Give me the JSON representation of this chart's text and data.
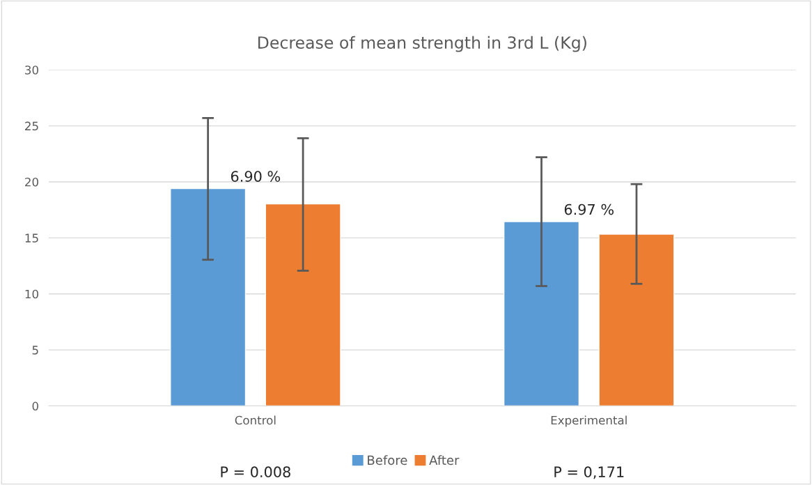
{
  "chart_data": {
    "type": "bar",
    "title": "Decrease of mean strength in 3rd L (Kg)",
    "categories": [
      "Control",
      "Experimental"
    ],
    "series": [
      {
        "name": "Before",
        "color": "#5b9bd5",
        "values": [
          19.4,
          16.45
        ],
        "errors": [
          [
            13.05,
            25.7
          ],
          [
            10.7,
            22.2
          ]
        ]
      },
      {
        "name": "After",
        "color": "#ed7d31",
        "values": [
          18.03,
          15.33
        ],
        "errors": [
          [
            12.07,
            23.9
          ],
          [
            10.9,
            19.8
          ]
        ]
      }
    ],
    "ylim": [
      0,
      30
    ],
    "yticks": [
      0,
      5,
      10,
      15,
      20,
      25,
      30
    ],
    "grid": "y",
    "legend": "bottom",
    "annotations": [
      "6.90 %",
      "6.97 %",
      "P = 0.008",
      "P = 0,171"
    ]
  }
}
